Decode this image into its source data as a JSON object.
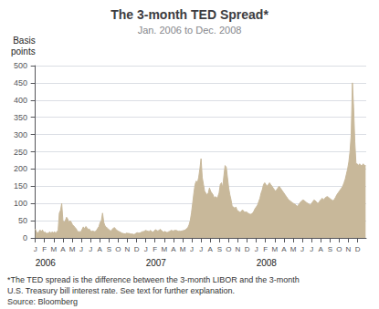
{
  "chart_data": {
    "type": "area",
    "title": "The 3-month TED Spread*",
    "subtitle": "Jan. 2006 to Dec. 2008",
    "ylabel": "Basis\npoints",
    "color": "#c8b89a",
    "grid": true,
    "ylim": [
      0,
      500
    ],
    "yticks": [
      0,
      50,
      100,
      150,
      200,
      250,
      300,
      350,
      400,
      450,
      500
    ],
    "xlim": [
      -0.5,
      275.5
    ],
    "xticks": [
      {
        "value": 0,
        "label": "J"
      },
      {
        "value": 7.666666666666667,
        "label": "F"
      },
      {
        "value": 15.333333333333334,
        "label": "M"
      },
      {
        "value": 23,
        "label": "A"
      },
      {
        "value": 30.666666666666668,
        "label": "M"
      },
      {
        "value": 38.333333333333336,
        "label": "J"
      },
      {
        "value": 46,
        "label": "J"
      },
      {
        "value": 53.666666666666664,
        "label": "A"
      },
      {
        "value": 61.333333333333336,
        "label": "S"
      },
      {
        "value": 69,
        "label": "O"
      },
      {
        "value": 76.66666666666667,
        "label": "N"
      },
      {
        "value": 84.33333333333333,
        "label": "D"
      },
      {
        "value": 92,
        "label": "J"
      },
      {
        "value": 99.66666666666667,
        "label": "F"
      },
      {
        "value": 107.33333333333333,
        "label": "M"
      },
      {
        "value": 115,
        "label": "A"
      },
      {
        "value": 122.66666666666667,
        "label": "M"
      },
      {
        "value": 130.33333333333334,
        "label": "J"
      },
      {
        "value": 138,
        "label": "J"
      },
      {
        "value": 145.66666666666666,
        "label": "A"
      },
      {
        "value": 153.33333333333334,
        "label": "S"
      },
      {
        "value": 161,
        "label": "O"
      },
      {
        "value": 168.66666666666666,
        "label": "N"
      },
      {
        "value": 176.33333333333334,
        "label": "D"
      },
      {
        "value": 184,
        "label": "J"
      },
      {
        "value": 191.66666666666666,
        "label": "F"
      },
      {
        "value": 199.33333333333334,
        "label": "M"
      },
      {
        "value": 207,
        "label": "A"
      },
      {
        "value": 214.66666666666666,
        "label": "M"
      },
      {
        "value": 222.33333333333334,
        "label": "J"
      },
      {
        "value": 230,
        "label": "J"
      },
      {
        "value": 237.66666666666666,
        "label": "A"
      },
      {
        "value": 245.33333333333334,
        "label": "S"
      },
      {
        "value": 253,
        "label": "O"
      },
      {
        "value": 260.6666666666667,
        "label": "N"
      },
      {
        "value": 268.3333333333333,
        "label": "D"
      }
    ],
    "annotations": [
      {
        "text": "2006",
        "x": 0
      },
      {
        "text": "2007",
        "x": 92
      },
      {
        "text": "2008",
        "x": 184
      }
    ],
    "footnotes": [
      "*The TED spread is the difference between the 3-month LIBOR and the 3-month",
      "U.S. Treasury bill interest rate. See text for further explanation.",
      "Source: Bloomberg"
    ],
    "x": [
      0,
      1,
      2,
      3,
      4,
      5,
      6,
      7,
      8,
      9,
      10,
      11,
      12,
      13,
      14,
      15,
      16,
      17,
      18,
      19,
      20,
      21,
      22,
      23,
      24,
      25,
      26,
      27,
      28,
      29,
      30,
      31,
      32,
      33,
      34,
      35,
      36,
      37,
      38,
      39,
      40,
      41,
      42,
      43,
      44,
      45,
      46,
      47,
      48,
      49,
      50,
      51,
      52,
      53,
      54,
      55,
      56,
      57,
      58,
      59,
      60,
      61,
      62,
      63,
      64,
      65,
      66,
      67,
      68,
      69,
      70,
      71,
      72,
      73,
      74,
      75,
      76,
      77,
      78,
      79,
      80,
      81,
      82,
      83,
      84,
      85,
      86,
      87,
      88,
      89,
      90,
      91,
      92,
      93,
      94,
      95,
      96,
      97,
      98,
      99,
      100,
      101,
      102,
      103,
      104,
      105,
      106,
      107,
      108,
      109,
      110,
      111,
      112,
      113,
      114,
      115,
      116,
      117,
      118,
      119,
      120,
      121,
      122,
      123,
      124,
      125,
      126,
      127,
      128,
      129,
      130,
      131,
      132,
      133,
      134,
      135,
      136,
      137,
      138,
      139,
      140,
      141,
      142,
      143,
      144,
      145,
      146,
      147,
      148,
      149,
      150,
      151,
      152,
      153,
      154,
      155,
      156,
      157,
      158,
      159,
      160,
      161,
      162,
      163,
      164,
      165,
      166,
      167,
      168,
      169,
      170,
      171,
      172,
      173,
      174,
      175,
      176,
      177,
      178,
      179,
      180,
      181,
      182,
      183,
      184,
      185,
      186,
      187,
      188,
      189,
      190,
      191,
      192,
      193,
      194,
      195,
      196,
      197,
      198,
      199,
      200,
      201,
      202,
      203,
      204,
      205,
      206,
      207,
      208,
      209,
      210,
      211,
      212,
      213,
      214,
      215,
      216,
      217,
      218,
      219,
      220,
      221,
      222,
      223,
      224,
      225,
      226,
      227,
      228,
      229,
      230,
      231,
      232,
      233,
      234,
      235,
      236,
      237,
      238,
      239,
      240,
      241,
      242,
      243,
      244,
      245,
      246,
      247,
      248,
      249,
      250,
      251,
      252,
      253,
      254,
      255,
      256,
      257,
      258,
      259,
      260,
      261,
      262,
      263,
      264,
      265,
      266,
      267,
      268,
      269,
      270,
      271,
      272,
      273,
      274,
      275
    ],
    "values": [
      26,
      17,
      14,
      18,
      23,
      18,
      23,
      15,
      17,
      14,
      13,
      14,
      18,
      14,
      17,
      15,
      18,
      14,
      18,
      22,
      72,
      80,
      100,
      50,
      45,
      50,
      60,
      55,
      45,
      50,
      45,
      38,
      35,
      30,
      27,
      19,
      18,
      18,
      18,
      25,
      32,
      26,
      33,
      30,
      24,
      26,
      20,
      19,
      20,
      18,
      19,
      22,
      28,
      33,
      45,
      50,
      72,
      45,
      35,
      32,
      28,
      25,
      22,
      20,
      25,
      28,
      30,
      25,
      22,
      20,
      18,
      16,
      14,
      13,
      12,
      12,
      14,
      13,
      13,
      12,
      11,
      11,
      10,
      11,
      14,
      15,
      14,
      14,
      16,
      18,
      18,
      20,
      22,
      20,
      19,
      19,
      22,
      18,
      17,
      20,
      24,
      22,
      20,
      22,
      25,
      22,
      18,
      17,
      19,
      16,
      16,
      18,
      19,
      22,
      21,
      20,
      22,
      22,
      21,
      19,
      20,
      19,
      20,
      21,
      22,
      23,
      27,
      30,
      38,
      50,
      72,
      100,
      130,
      155,
      165,
      160,
      175,
      200,
      230,
      175,
      155,
      135,
      130,
      125,
      130,
      145,
      135,
      130,
      125,
      115,
      120,
      115,
      120,
      130,
      155,
      160,
      145,
      180,
      210,
      205,
      175,
      145,
      125,
      110,
      90,
      90,
      85,
      90,
      80,
      78,
      75,
      75,
      80,
      80,
      75,
      75,
      75,
      72,
      70,
      68,
      70,
      72,
      78,
      85,
      90,
      95,
      105,
      115,
      130,
      140,
      155,
      160,
      155,
      150,
      155,
      160,
      155,
      150,
      145,
      140,
      135,
      140,
      145,
      150,
      145,
      140,
      135,
      130,
      125,
      120,
      115,
      110,
      108,
      105,
      102,
      100,
      98,
      95,
      92,
      95,
      100,
      105,
      108,
      110,
      108,
      105,
      102,
      100,
      98,
      95,
      100,
      105,
      110,
      108,
      105,
      100,
      102,
      108,
      112,
      115,
      110,
      115,
      118,
      120,
      118,
      115,
      112,
      110,
      108,
      112,
      118,
      125,
      130,
      135,
      140,
      145,
      150,
      160,
      170,
      185,
      200,
      220,
      250,
      300,
      450,
      380,
      280,
      215,
      215,
      210,
      215,
      210,
      210,
      215,
      210,
      210
    ]
  }
}
